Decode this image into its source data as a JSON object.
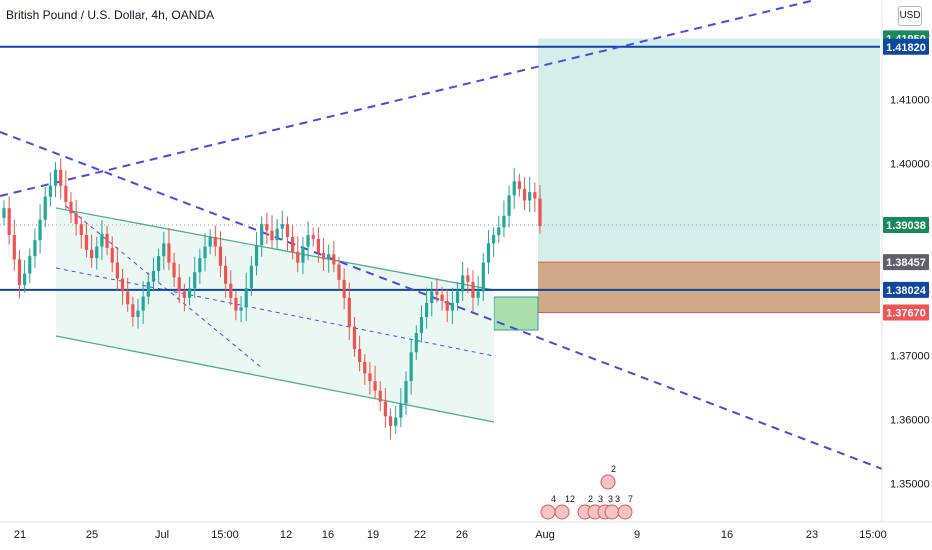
{
  "header": {
    "title": "British Pound / U.S. Dollar, 4h, OANDA",
    "currency_button": "USD"
  },
  "colors": {
    "up": "#26a69a",
    "down": "#ef5350",
    "level_line": "#0d47a1",
    "trend_dashed": "#4a4ae0",
    "channel": "#4caf8f",
    "channel_fill": "#e6f5ef",
    "target_fill": "#cdebe6",
    "stop_fill": "#c89a72",
    "entry_box": "#8fd48f",
    "price_label_green": "#1b8a5a",
    "price_label_navy": "#0d47a1",
    "price_label_gray": "#5d606b",
    "price_label_red": "#f05454"
  },
  "chart_data": {
    "type": "candlestick",
    "title": "British Pound / U.S. Dollar, 4h, OANDA",
    "y_axis": {
      "unit": "USD",
      "ylim": [
        1.344,
        1.4255
      ],
      "ticks": [
        "1.42000",
        "1.41000",
        "1.40000",
        "1.39000",
        "1.38000",
        "1.37000",
        "1.36000",
        "1.35000"
      ]
    },
    "x_axis": {
      "labels": [
        "21",
        "25",
        "Jul",
        "15:00",
        "12",
        "16",
        "19",
        "22",
        "26",
        "Aug",
        "9",
        "16",
        "23",
        "15:00"
      ]
    },
    "candle_closes_approx": [
      1.393,
      1.3888,
      1.385,
      1.381,
      1.3828,
      1.3855,
      1.388,
      1.3912,
      1.3948,
      1.3965,
      1.399,
      1.3965,
      1.394,
      1.3922,
      1.3905,
      1.3888,
      1.3865,
      1.3852,
      1.387,
      1.389,
      1.3868,
      1.3845,
      1.382,
      1.38,
      1.378,
      1.376,
      1.377,
      1.3792,
      1.3815,
      1.3832,
      1.3855,
      1.3875,
      1.3845,
      1.3822,
      1.38,
      1.379,
      1.3805,
      1.383,
      1.3852,
      1.387,
      1.3885,
      1.387,
      1.384,
      1.3812,
      1.379,
      1.377,
      1.3775,
      1.3805,
      1.384,
      1.3872,
      1.3905,
      1.3895,
      1.388,
      1.3898,
      1.3905,
      1.3885,
      1.3862,
      1.3845,
      1.387,
      1.3888,
      1.3882,
      1.386,
      1.385,
      1.3858,
      1.3842,
      1.3818,
      1.379,
      1.3745,
      1.371,
      1.369,
      1.3672,
      1.366,
      1.3645,
      1.3628,
      1.3605,
      1.359,
      1.3603,
      1.3625,
      1.366,
      1.3705,
      1.3735,
      1.376,
      1.3782,
      1.38,
      1.3795,
      1.3785,
      1.377,
      1.3782,
      1.38,
      1.3825,
      1.3815,
      1.379,
      1.38,
      1.3845,
      1.3875,
      1.3888,
      1.39,
      1.3918,
      1.395,
      1.3972,
      1.396,
      1.3942,
      1.3955,
      1.3945,
      1.3902
    ],
    "price_levels": [
      {
        "label": "1.41950",
        "value": 1.4195,
        "role": "target"
      },
      {
        "label": "1.41820",
        "value": 1.4182,
        "role": "resistance"
      },
      {
        "label": "1.39038",
        "value": 1.39038,
        "role": "last"
      },
      {
        "label": "1.38457",
        "value": 1.38457,
        "role": "entry"
      },
      {
        "label": "1.38024",
        "value": 1.38024,
        "role": "support"
      },
      {
        "label": "1.37670",
        "value": 1.3767,
        "role": "stop"
      }
    ],
    "event_markers": [
      "4",
      "12",
      "2",
      "3",
      "3",
      "3",
      "7",
      "2"
    ],
    "grid": false,
    "legend": "none"
  }
}
